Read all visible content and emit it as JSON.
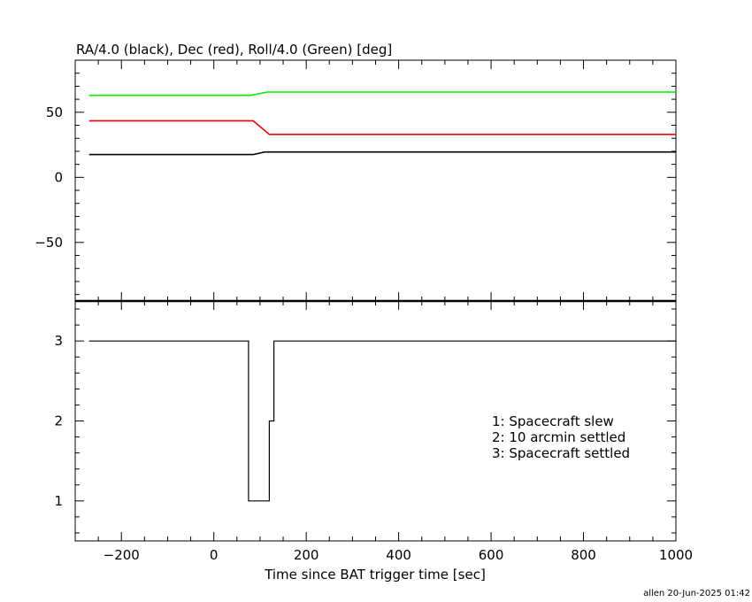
{
  "chart_data": [
    {
      "type": "line",
      "title": "RA/4.0 (black), Dec (red), Roll/4.0 (Green) [deg]",
      "xlim": [
        -300,
        1000
      ],
      "ylim": [
        -95,
        90
      ],
      "y_ticks": [
        -50,
        0,
        50
      ],
      "y_tick_labels": [
        "−50",
        "0",
        "50"
      ],
      "grid": false,
      "series": [
        {
          "color": "#00ee00",
          "x": [
            -270,
            80,
            115,
            1000
          ],
          "y": [
            63,
            63,
            65.5,
            65.5
          ]
        },
        {
          "color": "#ee0000",
          "x": [
            -270,
            85,
            120,
            1000
          ],
          "y": [
            43.5,
            43.5,
            33,
            33
          ]
        },
        {
          "color": "#000000",
          "x": [
            -270,
            85,
            110,
            1000
          ],
          "y": [
            17.5,
            17.5,
            19.5,
            19.5
          ]
        }
      ]
    },
    {
      "type": "line",
      "step": true,
      "xlabel": "Time since BAT trigger time [sec]",
      "xlim": [
        -300,
        1000
      ],
      "ylim": [
        0.5,
        3.5
      ],
      "x_ticks": [
        -200,
        0,
        200,
        400,
        600,
        800,
        1000
      ],
      "x_tick_labels": [
        "−200",
        "0",
        "200",
        "400",
        "600",
        "800",
        "1000"
      ],
      "y_ticks": [
        1,
        2,
        3
      ],
      "y_tick_labels": [
        "1",
        "2",
        "3"
      ],
      "grid": false,
      "series": [
        {
          "color": "#000000",
          "x": [
            -270,
            75,
            75,
            120,
            120,
            130,
            130,
            1000
          ],
          "y": [
            3,
            3,
            1,
            1,
            2,
            2,
            3,
            3
          ]
        }
      ],
      "annotations": [
        "1: Spacecraft slew",
        "2: 10 arcmin settled",
        "3: Spacecraft settled"
      ]
    }
  ],
  "footer": "allen 20-Jun-2025 01:42"
}
